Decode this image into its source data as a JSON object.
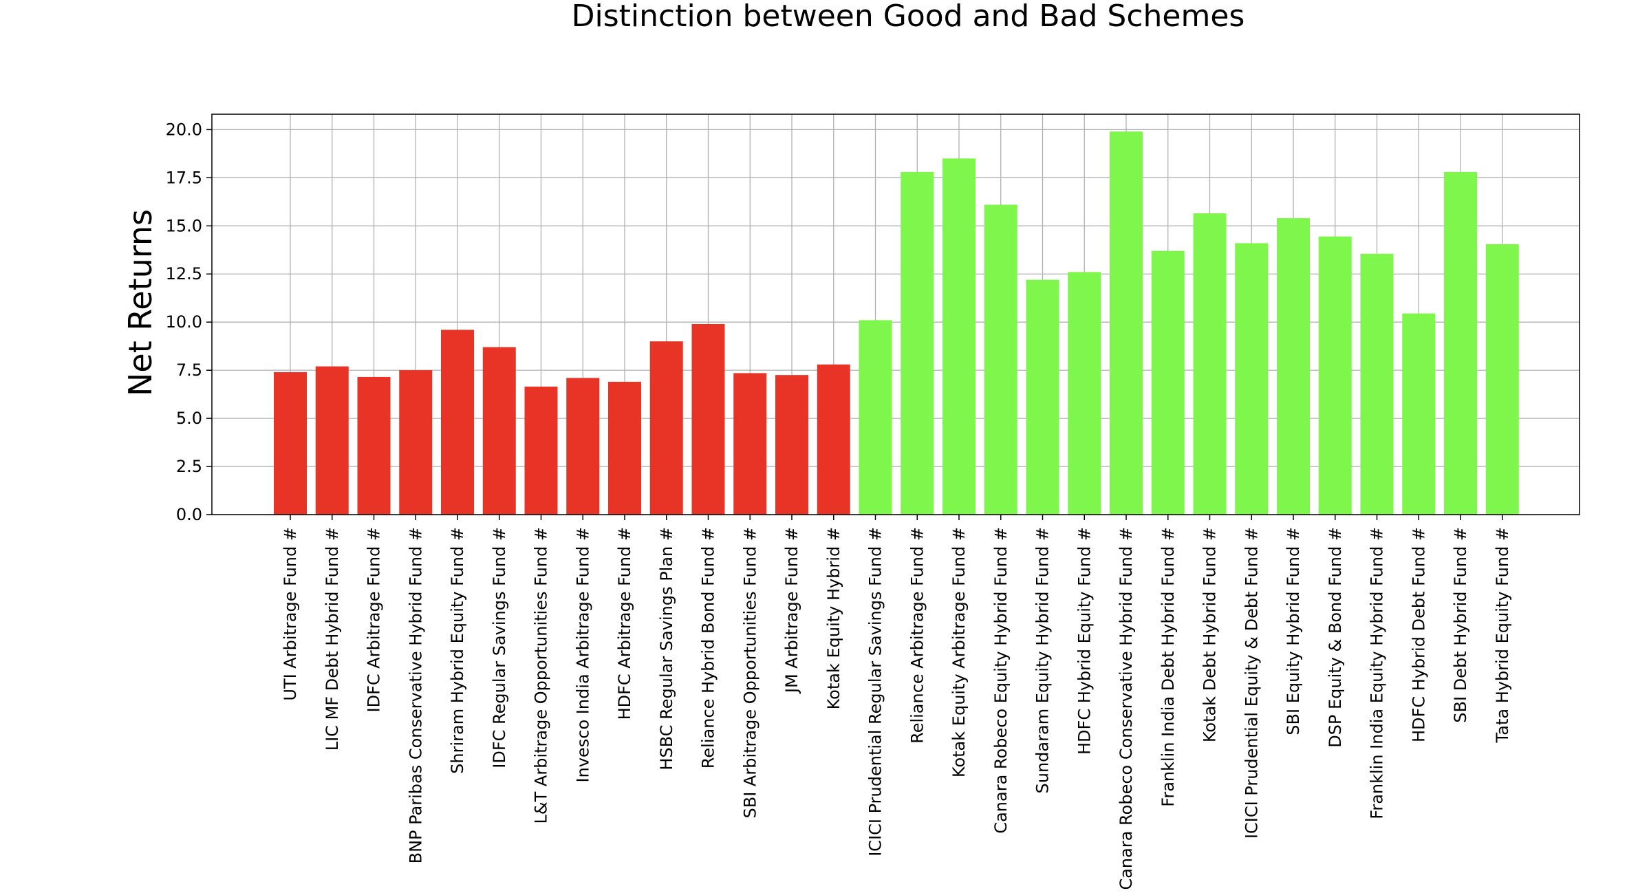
{
  "chart_data": {
    "type": "bar",
    "title": "Distinction between Good and Bad Schemes",
    "xlabel": "",
    "ylabel": "Net Returns",
    "ylim": [
      0,
      20.8
    ],
    "yticks": [
      "0.0",
      "2.5",
      "5.0",
      "7.5",
      "10.0",
      "12.5",
      "15.0",
      "17.5",
      "20.0"
    ],
    "grid": true,
    "colors": {
      "bad": "#e83426",
      "good": "#7ef64b"
    },
    "categories": [
      "UTI Arbitrage Fund #",
      "LIC MF Debt Hybrid Fund #",
      "IDFC Arbitrage Fund #",
      "BNP Paribas Conservative Hybrid Fund #",
      "Shriram Hybrid Equity Fund #",
      "IDFC Regular Savings Fund #",
      "L&T Arbitrage Opportunities Fund #",
      "Invesco India Arbitrage Fund #",
      "HDFC Arbitrage Fund #",
      "HSBC Regular Savings Plan #",
      "Reliance Hybrid Bond Fund #",
      "SBI Arbitrage Opportunities Fund #",
      "JM Arbitrage Fund #",
      "Kotak Equity Hybrid #",
      "ICICI Prudential Regular Savings Fund #",
      "Reliance Arbitrage Fund #",
      "Kotak Equity Arbitrage Fund #",
      "Canara Robeco Equity Hybrid Fund #",
      "Sundaram Equity Hybrid Fund #",
      "HDFC Hybrid Equity Fund #",
      "Canara Robeco Conservative Hybrid Fund #",
      "Franklin India Debt Hybrid Fund #",
      "Kotak Debt Hybrid Fund #",
      "ICICI Prudential Equity & Debt Fund #",
      "SBI Equity Hybrid Fund #",
      "DSP Equity & Bond Fund #",
      "Franklin India Equity Hybrid Fund #",
      "HDFC Hybrid Debt Fund #",
      "SBI Debt Hybrid Fund #",
      "Tata Hybrid Equity Fund #"
    ],
    "values": [
      7.4,
      7.7,
      7.15,
      7.5,
      9.6,
      8.7,
      6.65,
      7.1,
      6.9,
      9.0,
      9.9,
      7.35,
      7.25,
      7.8,
      10.1,
      17.8,
      18.5,
      16.1,
      12.2,
      12.6,
      19.9,
      13.7,
      15.65,
      14.1,
      15.4,
      14.45,
      13.55,
      10.45,
      17.8,
      14.05
    ],
    "groups": [
      "bad",
      "bad",
      "bad",
      "bad",
      "bad",
      "bad",
      "bad",
      "bad",
      "bad",
      "bad",
      "bad",
      "bad",
      "bad",
      "bad",
      "good",
      "good",
      "good",
      "good",
      "good",
      "good",
      "good",
      "good",
      "good",
      "good",
      "good",
      "good",
      "good",
      "good",
      "good",
      "good"
    ]
  }
}
